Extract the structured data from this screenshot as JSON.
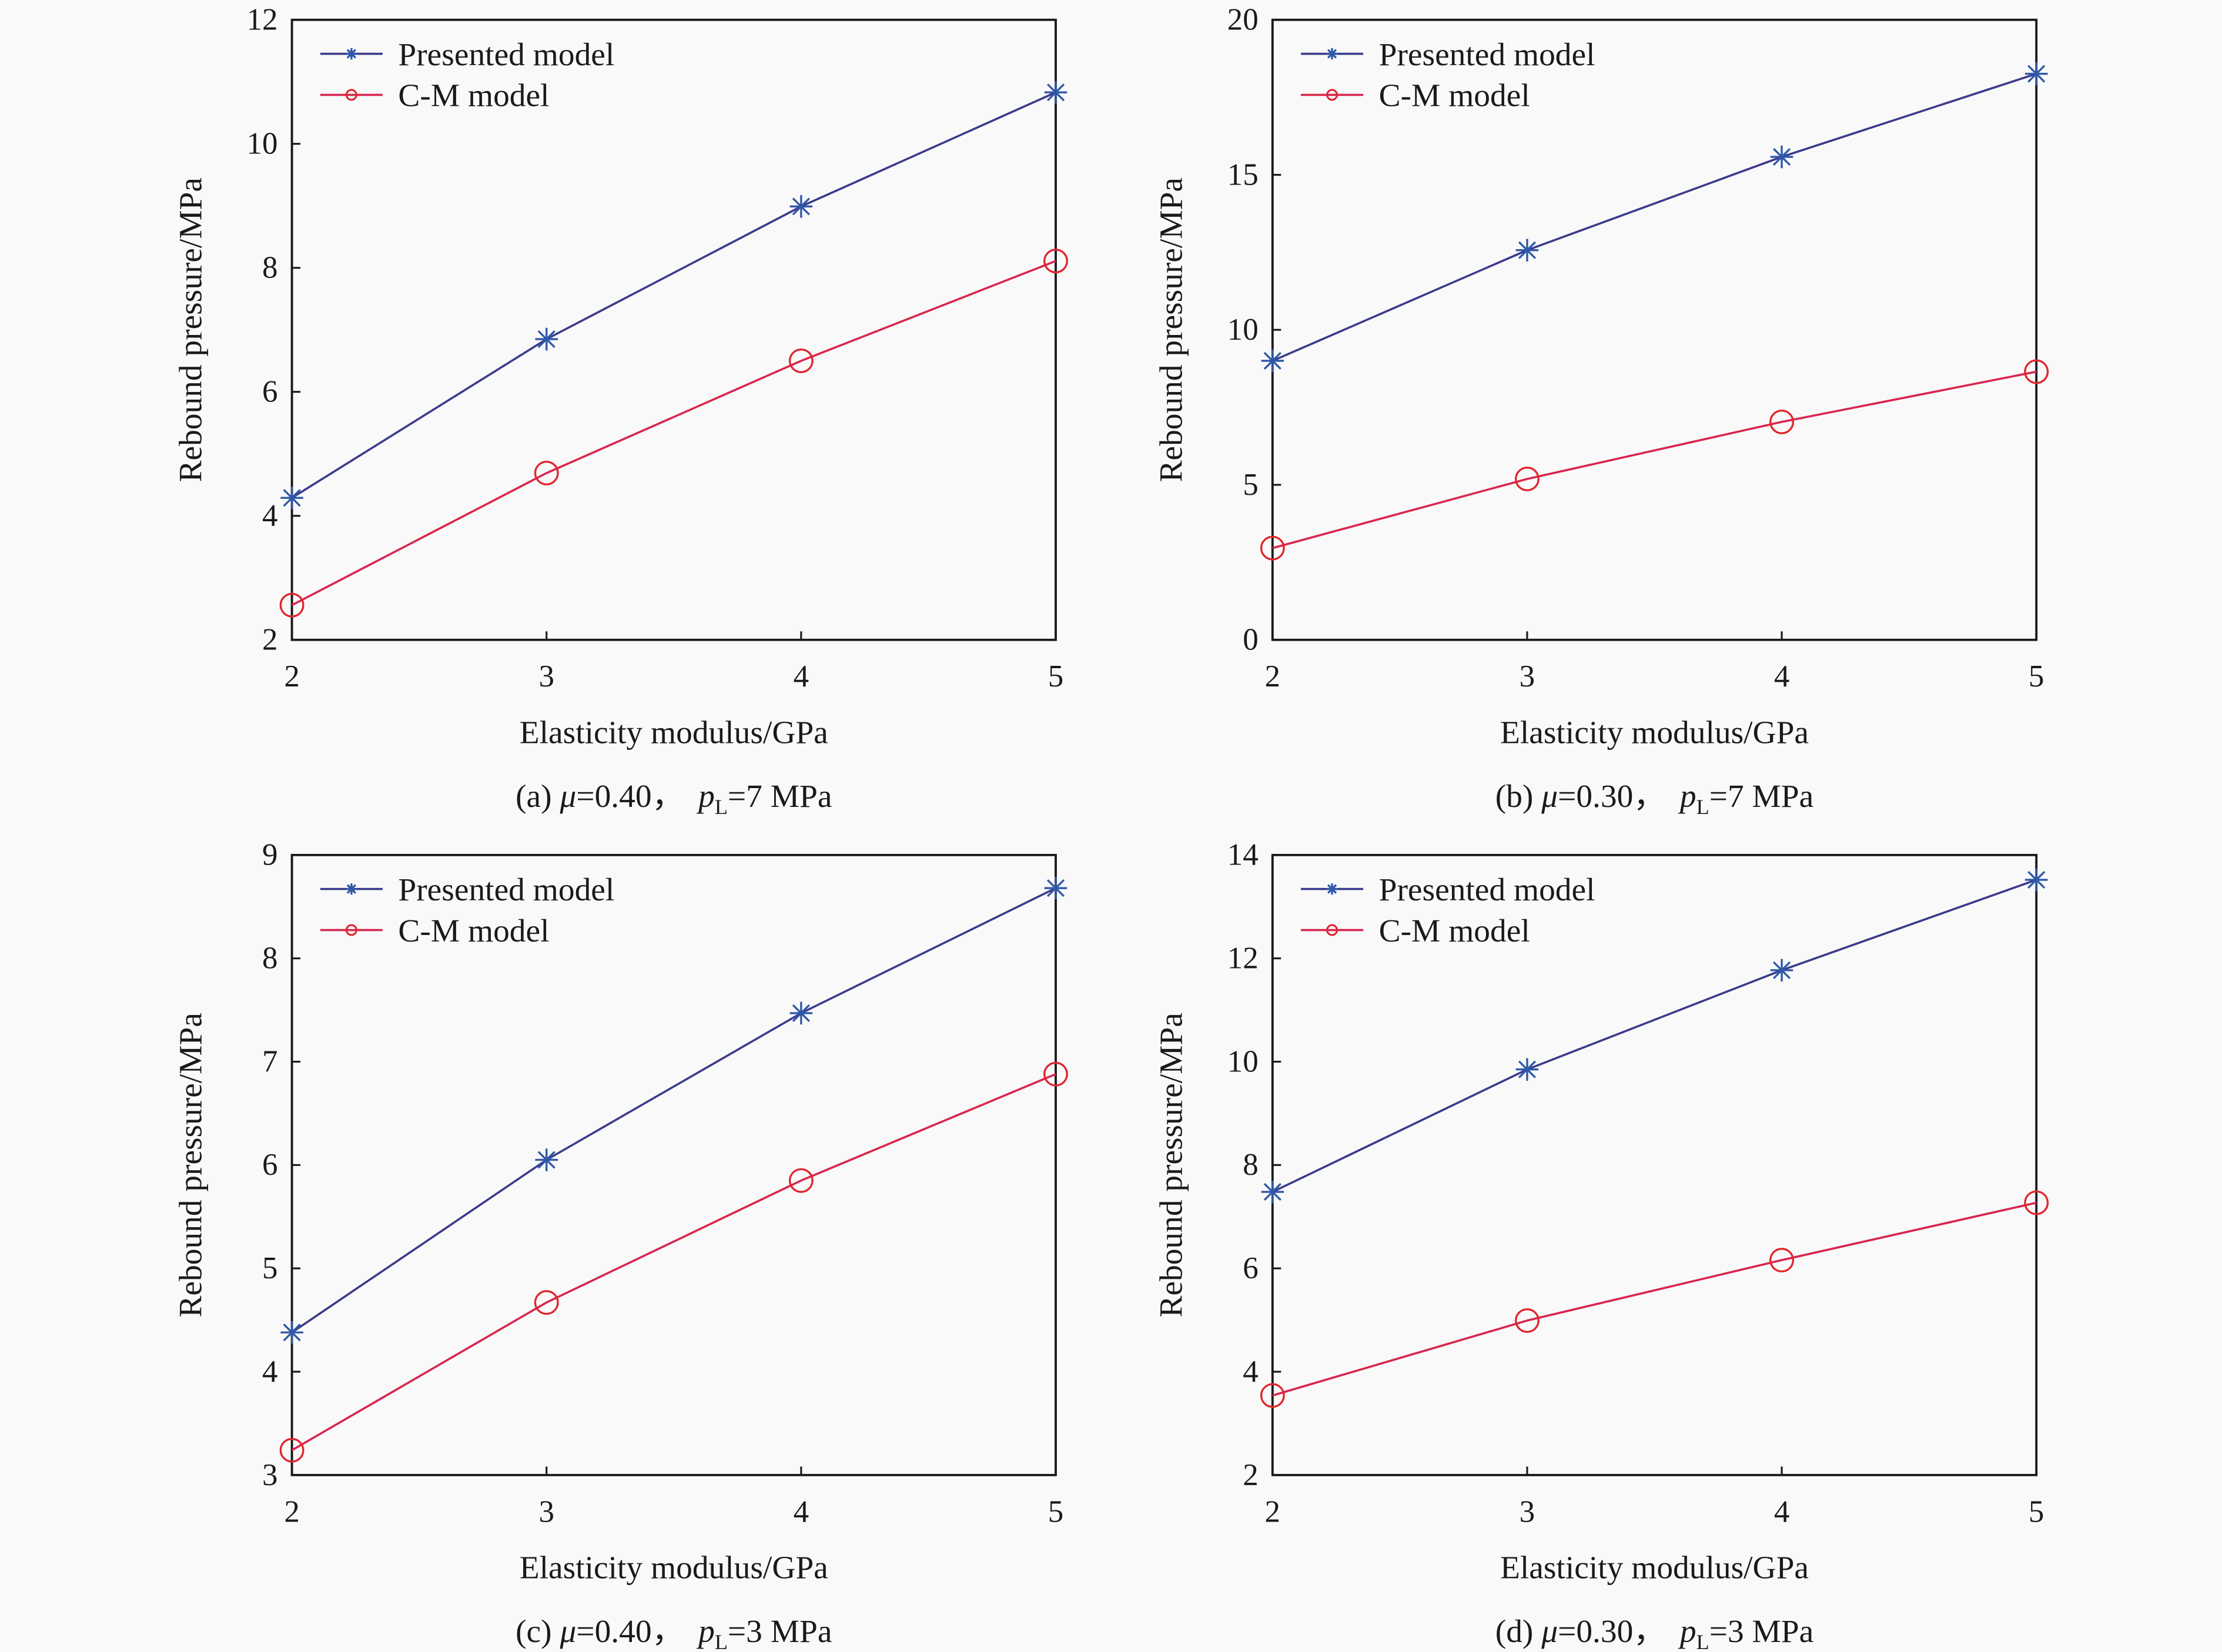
{
  "figure": {
    "colors": {
      "presented_line": "#3b3b8c",
      "presented_marker": "#2f58a8",
      "cm_line": "#d8264e",
      "cm_marker": "#e0262e",
      "axes": "#1a1a1a",
      "background": "#f9f9f9"
    }
  },
  "chart_data": [
    {
      "id": "a",
      "type": "line",
      "caption": {
        "prefix": "(a) ",
        "mu_symbol": "μ",
        "mu_value": "=0.40，",
        "p_symbol": "p",
        "p_sub": "L",
        "p_value": "=7 MPa"
      },
      "xlabel": "Elasticity modulus/GPa",
      "ylabel": "Rebound pressure/MPa",
      "x": [
        2,
        3,
        4,
        5
      ],
      "xticks": [
        2,
        3,
        4,
        5
      ],
      "xlim": [
        2,
        5
      ],
      "ylim": [
        2,
        12
      ],
      "yticks": [
        2,
        4,
        6,
        8,
        10,
        12
      ],
      "grid": false,
      "legend_position": "top-left",
      "series": [
        {
          "name": "Presented model",
          "marker": "asterisk",
          "values": [
            4.29,
            6.85,
            8.99,
            10.83
          ]
        },
        {
          "name": "C-M model",
          "marker": "circle",
          "values": [
            2.56,
            4.69,
            6.5,
            8.11
          ]
        }
      ]
    },
    {
      "id": "b",
      "type": "line",
      "caption": {
        "prefix": "(b) ",
        "mu_symbol": "μ",
        "mu_value": "=0.30，",
        "p_symbol": "p",
        "p_sub": "L",
        "p_value": "=7 MPa"
      },
      "xlabel": "Elasticity modulus/GPa",
      "ylabel": "Rebound pressure/MPa",
      "x": [
        2,
        3,
        4,
        5
      ],
      "xticks": [
        2,
        3,
        4,
        5
      ],
      "xlim": [
        2,
        5
      ],
      "ylim": [
        0,
        20
      ],
      "yticks": [
        0,
        5,
        10,
        15,
        20
      ],
      "grid": false,
      "legend_position": "top-left",
      "series": [
        {
          "name": "Presented model",
          "marker": "asterisk",
          "values": [
            9.0,
            12.57,
            15.58,
            18.26
          ]
        },
        {
          "name": "C-M model",
          "marker": "circle",
          "values": [
            2.96,
            5.19,
            7.03,
            8.65
          ]
        }
      ]
    },
    {
      "id": "c",
      "type": "line",
      "caption": {
        "prefix": "(c) ",
        "mu_symbol": "μ",
        "mu_value": "=0.40，",
        "p_symbol": "p",
        "p_sub": "L",
        "p_value": "=3 MPa"
      },
      "xlabel": "Elasticity modulus/GPa",
      "ylabel": "Rebound pressure/MPa",
      "x": [
        2,
        3,
        4,
        5
      ],
      "xticks": [
        2,
        3,
        4,
        5
      ],
      "xlim": [
        2,
        5
      ],
      "ylim": [
        3,
        9
      ],
      "yticks": [
        3,
        4,
        5,
        6,
        7,
        8,
        9
      ],
      "grid": false,
      "legend_position": "top-left",
      "series": [
        {
          "name": "Presented model",
          "marker": "asterisk",
          "values": [
            4.38,
            6.05,
            7.47,
            8.68
          ]
        },
        {
          "name": "C-M model",
          "marker": "circle",
          "values": [
            3.24,
            4.67,
            5.85,
            6.88
          ]
        }
      ]
    },
    {
      "id": "d",
      "type": "line",
      "caption": {
        "prefix": "(d) ",
        "mu_symbol": "μ",
        "mu_value": "=0.30，",
        "p_symbol": "p",
        "p_sub": "L",
        "p_value": "=3 MPa"
      },
      "xlabel": "Elasticity modulus/GPa",
      "ylabel": "Rebound pressure/MPa",
      "x": [
        2,
        3,
        4,
        5
      ],
      "xticks": [
        2,
        3,
        4,
        5
      ],
      "xlim": [
        2,
        5
      ],
      "ylim": [
        2,
        14
      ],
      "yticks": [
        2,
        4,
        6,
        8,
        10,
        12,
        14
      ],
      "grid": false,
      "legend_position": "top-left",
      "series": [
        {
          "name": "Presented model",
          "marker": "asterisk",
          "values": [
            7.48,
            9.85,
            11.77,
            13.52
          ]
        },
        {
          "name": "C-M model",
          "marker": "circle",
          "values": [
            3.54,
            4.99,
            6.16,
            7.27
          ]
        }
      ]
    }
  ]
}
